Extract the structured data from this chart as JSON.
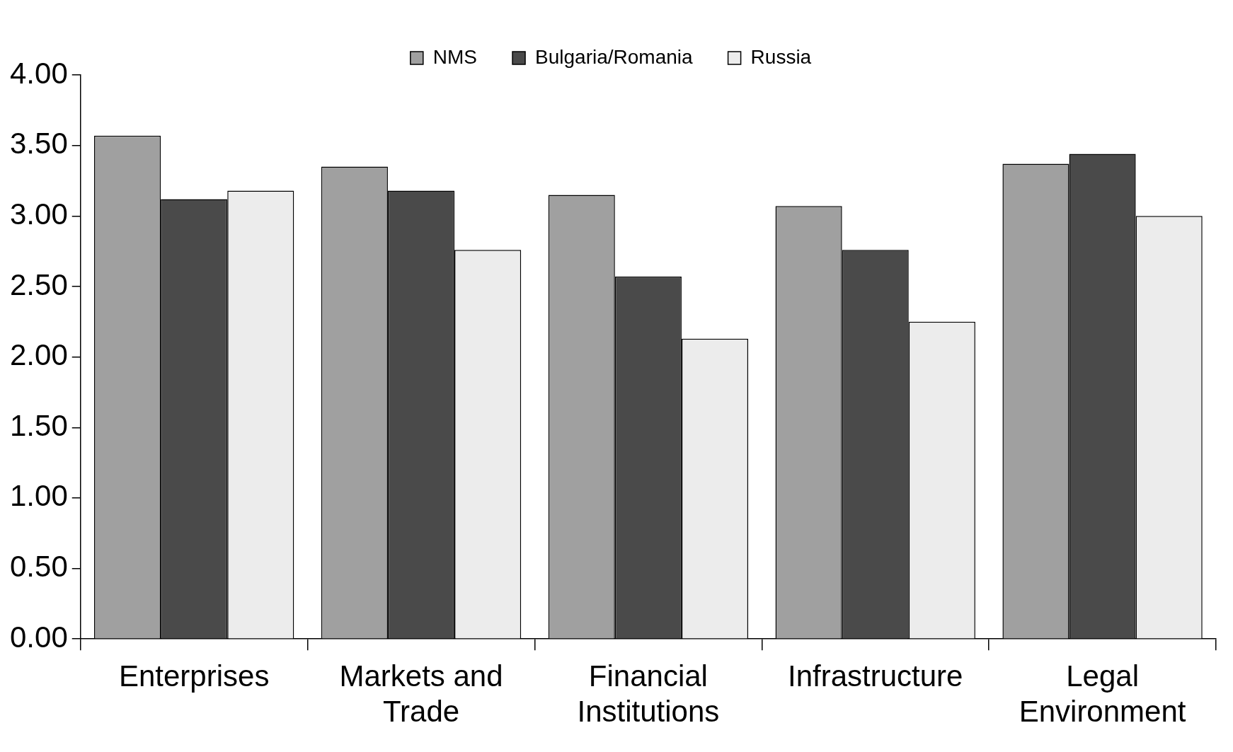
{
  "chart_data": {
    "type": "bar",
    "categories": [
      "Enterprises",
      "Markets and Trade",
      "Financial Institutions",
      "Infrastructure",
      "Legal Environment"
    ],
    "series": [
      {
        "name": "NMS",
        "color": "#a0a0a0",
        "values": [
          3.57,
          3.35,
          3.15,
          3.07,
          3.37
        ]
      },
      {
        "name": "Bulgaria/Romania",
        "color": "#4a4a4a",
        "values": [
          3.12,
          3.18,
          2.57,
          2.76,
          3.44
        ]
      },
      {
        "name": "Russia",
        "color": "#ececec",
        "values": [
          3.18,
          2.76,
          2.13,
          2.25,
          3.0
        ]
      }
    ],
    "ylim": [
      0,
      4
    ],
    "yticks": [
      {
        "value": 0,
        "label": "0.00"
      },
      {
        "value": 0.5,
        "label": "0.50"
      },
      {
        "value": 1,
        "label": "1.00"
      },
      {
        "value": 1.5,
        "label": "1.50"
      },
      {
        "value": 2,
        "label": "2.00"
      },
      {
        "value": 2.5,
        "label": "2.50"
      },
      {
        "value": 3,
        "label": "3.00"
      },
      {
        "value": 3.5,
        "label": "3.50"
      },
      {
        "value": 4,
        "label": "4.00"
      }
    ],
    "grid": false,
    "legend": "top"
  }
}
